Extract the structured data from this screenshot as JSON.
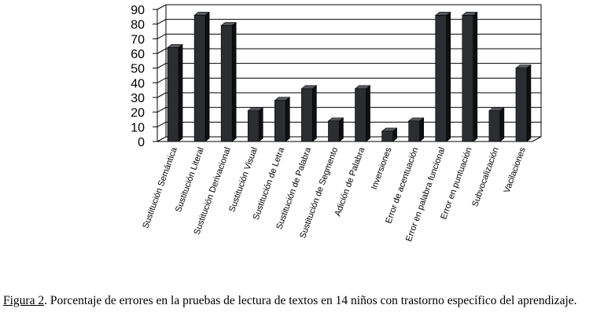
{
  "chart_data": {
    "type": "bar",
    "categories": [
      "Sustitución Semántica",
      "Sustitución Literal",
      "Sustitución Derivacional",
      "Sustitución Visual",
      "Sustitución de Letra",
      "Sustitución de Palabra",
      "Sustitución de Segmento",
      "Adición de Palabra",
      "Inversiones",
      "Error de acentuación",
      "Error en palabra funcional",
      "Error en puntuación",
      "Subvocalización",
      "Vacilaciones"
    ],
    "values": [
      64,
      86,
      79,
      21,
      28,
      36,
      14,
      36,
      7,
      14,
      86,
      86,
      21,
      50
    ],
    "yticks": [
      "0",
      "10",
      "20",
      "30",
      "40",
      "50",
      "60",
      "70",
      "80",
      "90"
    ],
    "ylim": [
      0,
      90
    ],
    "grid": true,
    "bar_color": "#2b2d31"
  },
  "caption": {
    "label": "Figura 2",
    "text": ". Porcentaje de errores en la pruebas de lectura de textos en 14 niños con trastorno específico del aprendizaje."
  }
}
